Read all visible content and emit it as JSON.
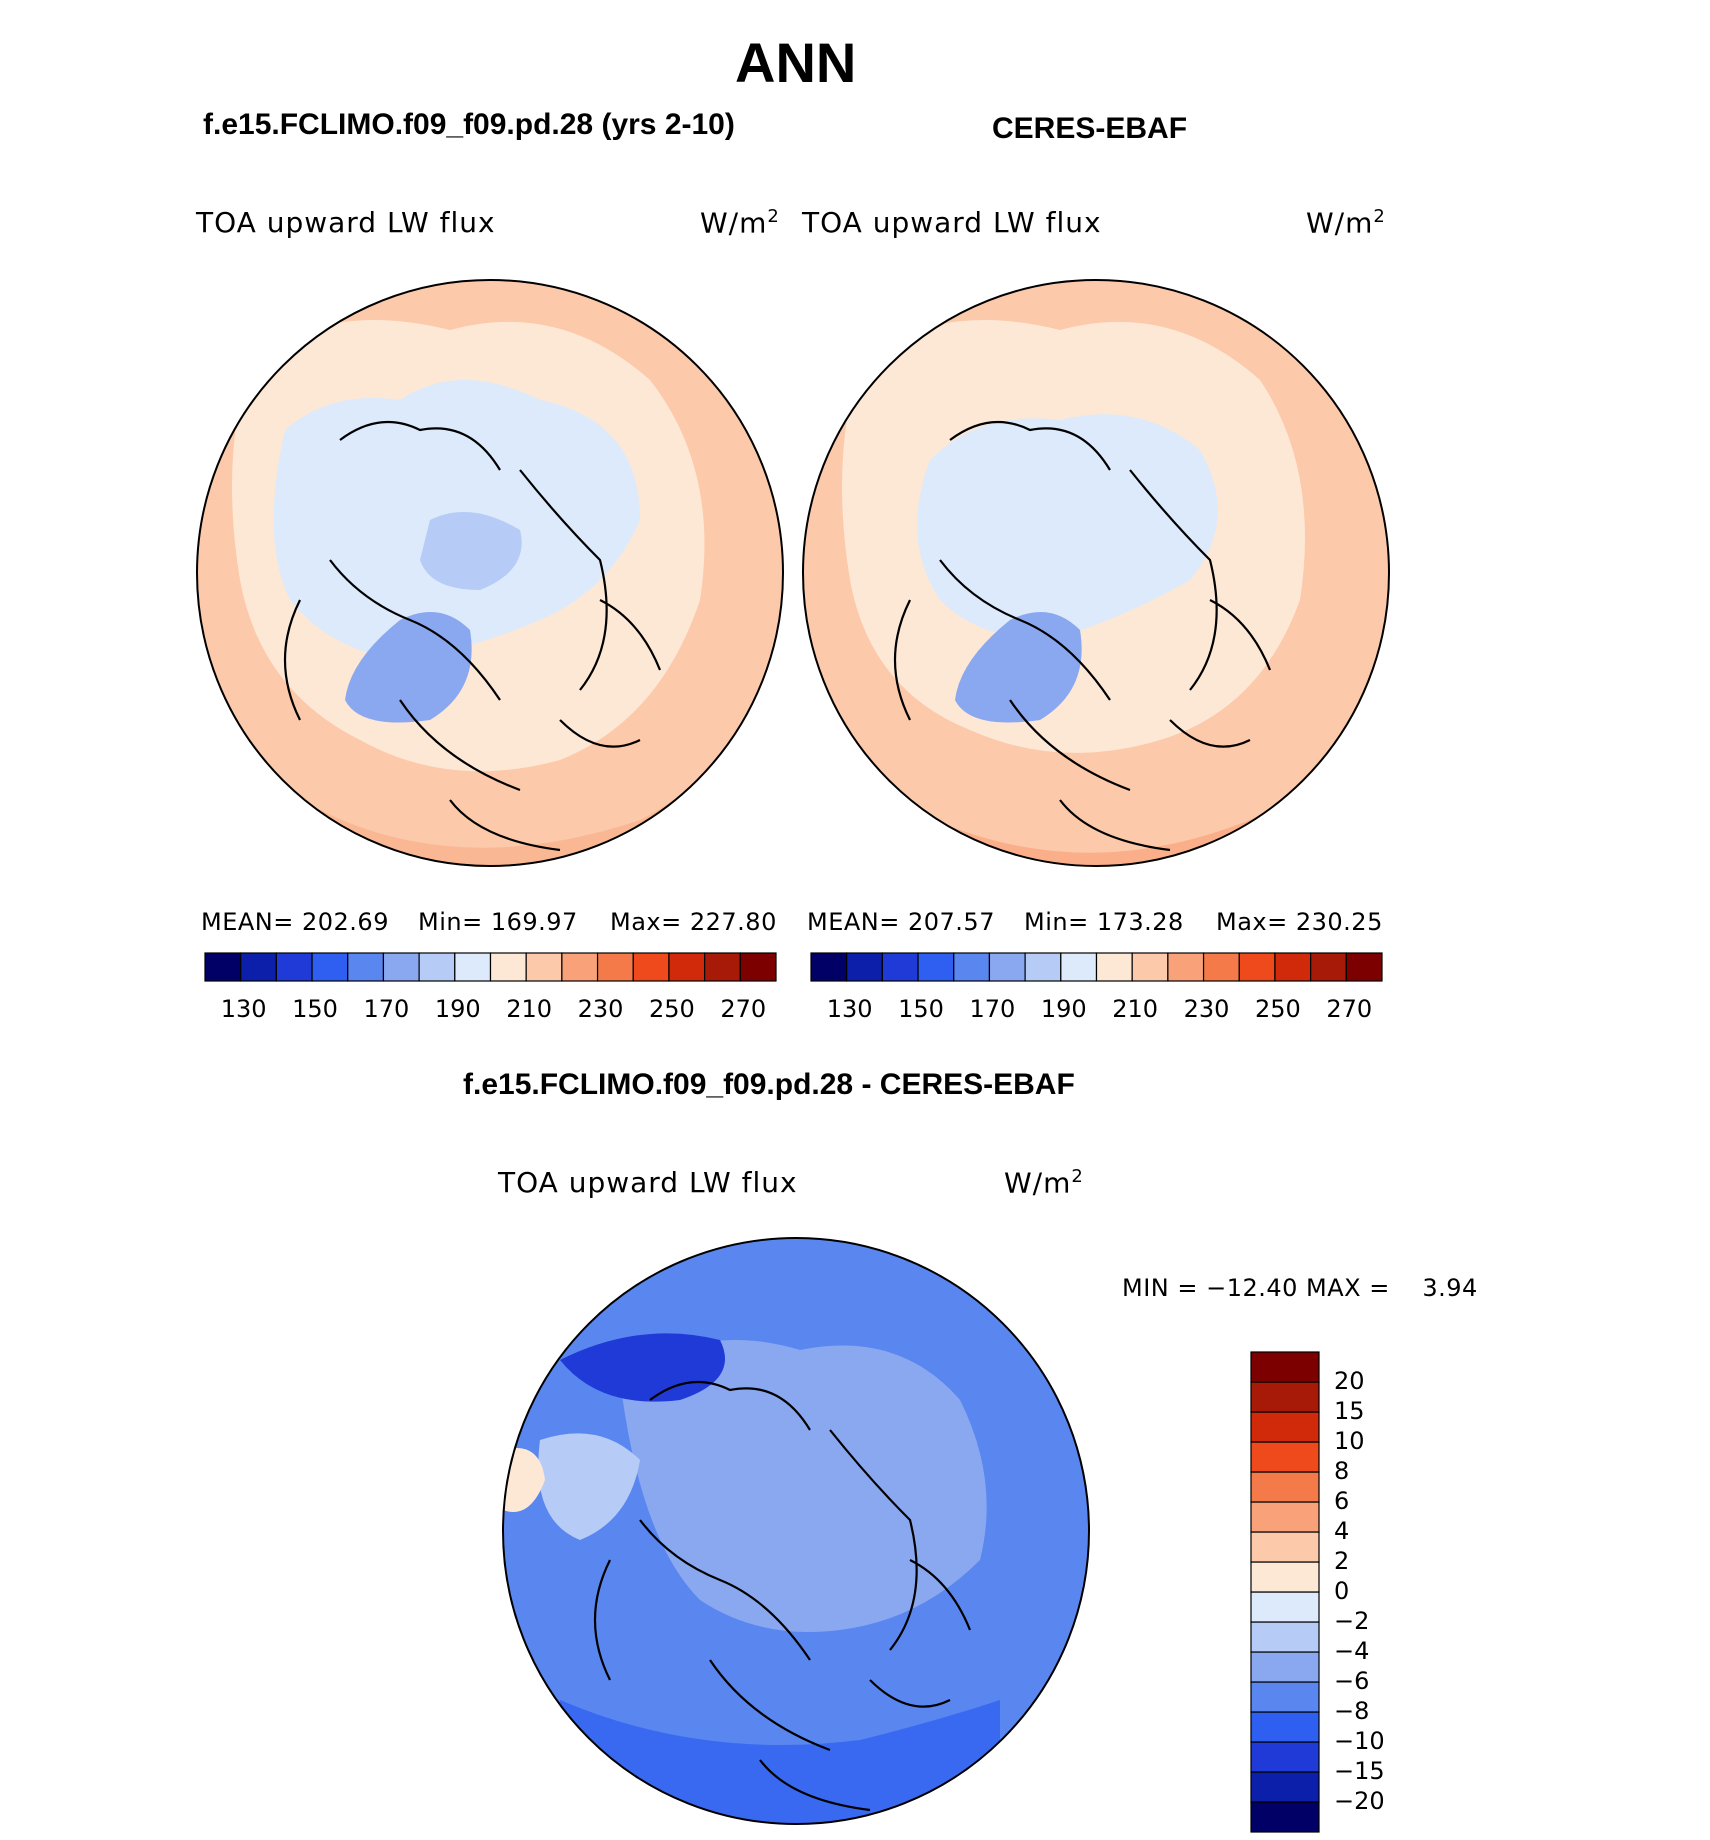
{
  "figure": {
    "title": "ANN",
    "left_title": "f.e15.FCLIMO.f09_f09.pd.28 (yrs 2-10)",
    "right_title": "CERES-EBAF",
    "diff_title": "f.e15.FCLIMO.f09_f09.pd.28 - CERES-EBAF"
  },
  "panels": {
    "left": {
      "variable": "TOA upward LW flux",
      "units": "W/m",
      "units_sup": "2",
      "mean_text": "MEAN= 202.69",
      "min_text": "Min= 169.97",
      "max_text": "Max= 227.80"
    },
    "right": {
      "variable": "TOA upward LW flux",
      "units": "W/m",
      "units_sup": "2",
      "mean_text": "MEAN= 207.57",
      "min_text": "Min= 173.28",
      "max_text": "Max= 230.25"
    },
    "diff": {
      "variable": "TOA upward LW flux",
      "units": "W/m",
      "units_sup": "2",
      "minmax_text": "MIN = −12.40 MAX =    3.94"
    }
  },
  "chart_data": [
    {
      "type": "heatmap",
      "projection": "north-polar-stereographic",
      "title": "f.e15.FCLIMO.f09_f09.pd.28 (yrs 2-10)",
      "variable": "TOA upward LW flux",
      "units": "W/m2",
      "mean": 202.69,
      "min": 169.97,
      "max": 227.8,
      "colorbar": {
        "orientation": "horizontal",
        "levels": [
          130,
          140,
          150,
          160,
          170,
          180,
          190,
          200,
          210,
          220,
          230,
          240,
          250,
          260,
          270
        ],
        "tick_labels": [
          "130",
          "150",
          "170",
          "190",
          "210",
          "230",
          "250",
          "270"
        ],
        "colors": [
          "#000066",
          "#0b1faa",
          "#1f3ad6",
          "#2e5ff0",
          "#5a86f0",
          "#8aa8f0",
          "#b6ccf7",
          "#dceafb",
          "#fde8d6",
          "#fcc9aa",
          "#f9a27a",
          "#f47a4a",
          "#ee4a1c",
          "#d02a0a",
          "#a81a08",
          "#7d0000"
        ]
      }
    },
    {
      "type": "heatmap",
      "projection": "north-polar-stereographic",
      "title": "CERES-EBAF",
      "variable": "TOA upward LW flux",
      "units": "W/m2",
      "mean": 207.57,
      "min": 173.28,
      "max": 230.25,
      "colorbar": {
        "orientation": "horizontal",
        "levels": [
          130,
          140,
          150,
          160,
          170,
          180,
          190,
          200,
          210,
          220,
          230,
          240,
          250,
          260,
          270
        ],
        "tick_labels": [
          "130",
          "150",
          "170",
          "190",
          "210",
          "230",
          "250",
          "270"
        ],
        "colors": [
          "#000066",
          "#0b1faa",
          "#1f3ad6",
          "#2e5ff0",
          "#5a86f0",
          "#8aa8f0",
          "#b6ccf7",
          "#dceafb",
          "#fde8d6",
          "#fcc9aa",
          "#f9a27a",
          "#f47a4a",
          "#ee4a1c",
          "#d02a0a",
          "#a81a08",
          "#7d0000"
        ]
      }
    },
    {
      "type": "heatmap",
      "projection": "north-polar-stereographic",
      "title": "f.e15.FCLIMO.f09_f09.pd.28 - CERES-EBAF",
      "variable": "TOA upward LW flux",
      "units": "W/m2",
      "min": -12.4,
      "max": 3.94,
      "colorbar": {
        "orientation": "vertical",
        "levels": [
          -20,
          -15,
          -10,
          -8,
          -6,
          -4,
          -2,
          0,
          2,
          4,
          6,
          8,
          10,
          15,
          20
        ],
        "tick_labels": [
          "−20",
          "−15",
          "−10",
          "−8",
          "−6",
          "−4",
          "−2",
          "0",
          "2",
          "4",
          "6",
          "8",
          "10",
          "15",
          "20"
        ],
        "colors": [
          "#000066",
          "#0b1faa",
          "#1f3ad6",
          "#2e5ff0",
          "#5a86f0",
          "#8aa8f0",
          "#b6ccf7",
          "#dceafb",
          "#fde8d6",
          "#fcc9aa",
          "#f9a27a",
          "#f47a4a",
          "#ee4a1c",
          "#d02a0a",
          "#a81a08",
          "#7d0000"
        ]
      }
    }
  ]
}
